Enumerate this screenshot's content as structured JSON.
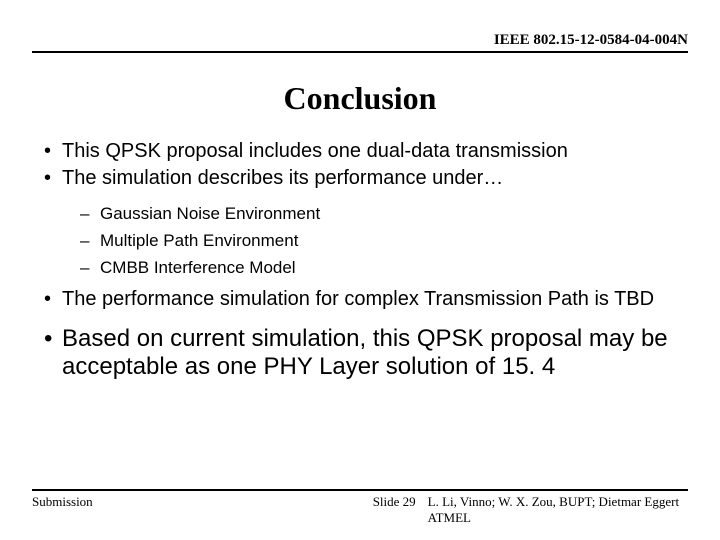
{
  "header": {
    "doc_id": "IEEE 802.15-12-0584-04-004N"
  },
  "title": "Conclusion",
  "bullets": {
    "b1": "This QPSK proposal  includes one dual-data transmission",
    "b2": "The simulation describes its performance under…",
    "b2_sub1": "Gaussian Noise Environment",
    "b2_sub2": "Multiple Path Environment",
    "b2_sub3": "CMBB Interference Model",
    "b3": "The performance simulation for complex Transmission Path is TBD",
    "b4": "Based on current simulation, this QPSK proposal  may be acceptable as one PHY Layer solution of 15. 4"
  },
  "footer": {
    "left": "Submission",
    "slide": "Slide 29",
    "authors": "L. Li, Vinno; W. X. Zou, BUPT; Dietmar Eggert ATMEL"
  },
  "style": {
    "background_color": "#ffffff",
    "text_color": "#000000",
    "title_fontsize_pt": 32,
    "bullet1_fontsize_pt": 20,
    "bullet1_large_fontsize_pt": 24,
    "bullet2_fontsize_pt": 17,
    "header_fontsize_pt": 15,
    "footer_fontsize_pt": 13,
    "header_font": "Times New Roman",
    "body_font": "Arial"
  }
}
